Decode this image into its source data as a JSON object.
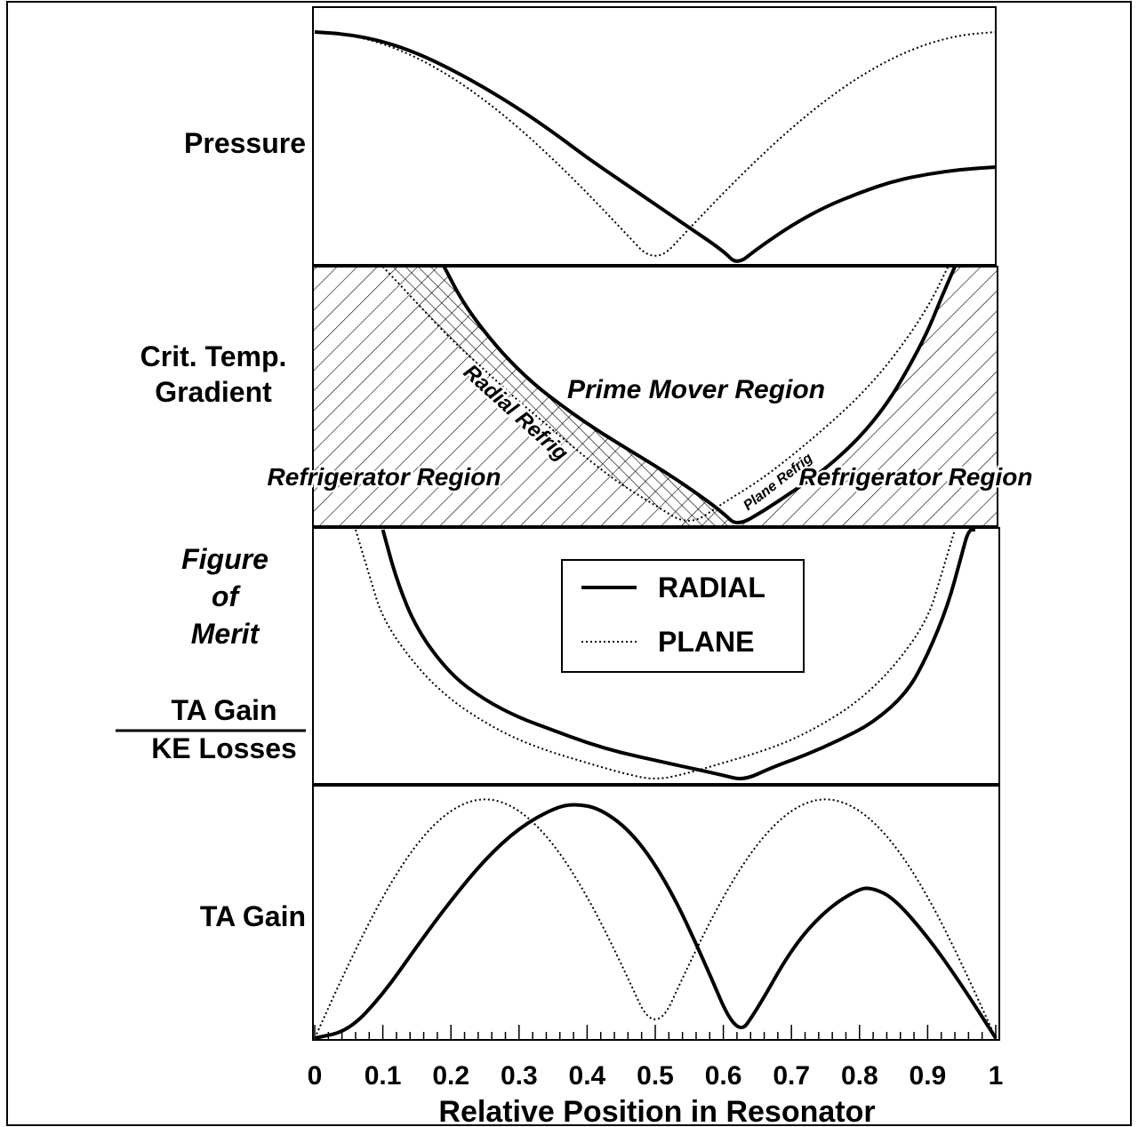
{
  "chart_data": {
    "type": "line",
    "xlabel": "Relative Position in Resonator",
    "xticks": [
      "0",
      "0.1",
      "0.2",
      "0.3",
      "0.4",
      "0.5",
      "0.6",
      "0.7",
      "0.8",
      "0.9",
      "1"
    ],
    "xlim": [
      0,
      1
    ],
    "legend": {
      "placement": "figure-of-merit panel, center",
      "entries": [
        {
          "label": "RADIAL",
          "style": "solid"
        },
        {
          "label": "PLANE",
          "style": "dotted"
        }
      ]
    },
    "panels": [
      {
        "ylabel": "Pressure",
        "series": [
          {
            "name": "RADIAL",
            "x": [
              0,
              0.05,
              0.1,
              0.15,
              0.2,
              0.25,
              0.3,
              0.35,
              0.4,
              0.45,
              0.5,
              0.55,
              0.6,
              0.62,
              0.65,
              0.7,
              0.75,
              0.8,
              0.85,
              0.9,
              0.95,
              1.0
            ],
            "y": [
              1.0,
              0.99,
              0.96,
              0.91,
              0.84,
              0.76,
              0.67,
              0.57,
              0.46,
              0.36,
              0.26,
              0.16,
              0.06,
              0.0,
              0.07,
              0.17,
              0.25,
              0.31,
              0.36,
              0.39,
              0.41,
              0.42
            ]
          },
          {
            "name": "PLANE",
            "x": [
              0,
              0.05,
              0.1,
              0.15,
              0.2,
              0.25,
              0.3,
              0.35,
              0.4,
              0.45,
              0.5,
              0.55,
              0.6,
              0.65,
              0.7,
              0.75,
              0.8,
              0.85,
              0.9,
              0.95,
              1.0
            ],
            "y": [
              1.0,
              0.988,
              0.951,
              0.891,
              0.809,
              0.707,
              0.588,
              0.454,
              0.309,
              0.156,
              0.0,
              0.156,
              0.309,
              0.454,
              0.588,
              0.707,
              0.809,
              0.891,
              0.951,
              0.988,
              1.0
            ]
          }
        ]
      },
      {
        "ylabel": "Crit. Temp. Gradient",
        "regions": [
          {
            "label": "Prime Mover Region"
          },
          {
            "label": "Refrigerator Region"
          },
          {
            "label": "Refrigerator Region"
          },
          {
            "label": "Radial Refrig"
          },
          {
            "label": "Plane Refrig"
          }
        ],
        "series": [
          {
            "name": "RADIAL",
            "x": [
              0.19,
              0.22,
              0.27,
              0.32,
              0.37,
              0.42,
              0.47,
              0.52,
              0.57,
              0.6,
              0.62,
              0.66,
              0.7,
              0.75,
              0.8,
              0.84,
              0.87,
              0.9,
              0.92,
              0.94
            ],
            "y": [
              1.0,
              0.85,
              0.68,
              0.55,
              0.45,
              0.36,
              0.28,
              0.2,
              0.11,
              0.05,
              0.0,
              0.06,
              0.13,
              0.22,
              0.34,
              0.47,
              0.6,
              0.75,
              0.88,
              1.0
            ]
          },
          {
            "name": "PLANE",
            "x": [
              0.1,
              0.15,
              0.2,
              0.25,
              0.3,
              0.35,
              0.4,
              0.45,
              0.5,
              0.55,
              0.6,
              0.65,
              0.7,
              0.75,
              0.8,
              0.85,
              0.9,
              0.93
            ],
            "y": [
              1.0,
              0.86,
              0.72,
              0.6,
              0.48,
              0.37,
              0.26,
              0.16,
              0.08,
              0.0,
              0.09,
              0.17,
              0.27,
              0.38,
              0.5,
              0.65,
              0.84,
              1.0
            ]
          }
        ]
      },
      {
        "ylabel": "Figure of Merit",
        "ylabel_ratio": {
          "numerator": "TA Gain",
          "denominator": "KE Losses"
        },
        "series": [
          {
            "name": "RADIAL",
            "x": [
              0.1,
              0.12,
              0.15,
              0.2,
              0.25,
              0.3,
              0.35,
              0.4,
              0.45,
              0.5,
              0.55,
              0.6,
              0.63,
              0.67,
              0.72,
              0.77,
              0.82,
              0.87,
              0.9,
              0.93,
              0.95,
              0.96,
              0.97
            ],
            "y": [
              1.0,
              0.8,
              0.6,
              0.42,
              0.32,
              0.25,
              0.2,
              0.15,
              0.11,
              0.08,
              0.05,
              0.02,
              0.0,
              0.05,
              0.1,
              0.16,
              0.23,
              0.35,
              0.5,
              0.7,
              0.9,
              1.0,
              1.0
            ]
          },
          {
            "name": "PLANE",
            "x": [
              0.06,
              0.08,
              0.1,
              0.15,
              0.2,
              0.25,
              0.3,
              0.35,
              0.4,
              0.45,
              0.5,
              0.55,
              0.6,
              0.65,
              0.7,
              0.75,
              0.8,
              0.85,
              0.9,
              0.92,
              0.94
            ],
            "y": [
              1.0,
              0.82,
              0.64,
              0.45,
              0.32,
              0.23,
              0.16,
              0.11,
              0.07,
              0.03,
              0.0,
              0.03,
              0.07,
              0.11,
              0.16,
              0.23,
              0.32,
              0.45,
              0.64,
              0.82,
              1.0
            ]
          }
        ]
      },
      {
        "ylabel": "TA Gain",
        "series": [
          {
            "name": "RADIAL",
            "x": [
              0,
              0.05,
              0.1,
              0.15,
              0.2,
              0.25,
              0.3,
              0.35,
              0.38,
              0.42,
              0.47,
              0.52,
              0.57,
              0.62,
              0.65,
              0.7,
              0.75,
              0.8,
              0.82,
              0.85,
              0.9,
              0.95,
              1.0
            ],
            "y": [
              0.0,
              0.03,
              0.18,
              0.38,
              0.57,
              0.74,
              0.87,
              0.95,
              0.97,
              0.95,
              0.84,
              0.63,
              0.33,
              0.0,
              0.12,
              0.37,
              0.53,
              0.62,
              0.62,
              0.58,
              0.42,
              0.22,
              0.0
            ]
          },
          {
            "name": "PLANE",
            "x": [
              0,
              0.05,
              0.1,
              0.15,
              0.2,
              0.25,
              0.3,
              0.35,
              0.4,
              0.45,
              0.5,
              0.55,
              0.6,
              0.65,
              0.7,
              0.75,
              0.8,
              0.85,
              0.9,
              0.95,
              1.0
            ],
            "y": [
              0.0,
              0.31,
              0.59,
              0.81,
              0.95,
              1.0,
              0.95,
              0.81,
              0.59,
              0.31,
              0.0,
              0.31,
              0.59,
              0.81,
              0.95,
              1.0,
              0.95,
              0.81,
              0.59,
              0.31,
              0.0
            ]
          }
        ]
      }
    ]
  }
}
